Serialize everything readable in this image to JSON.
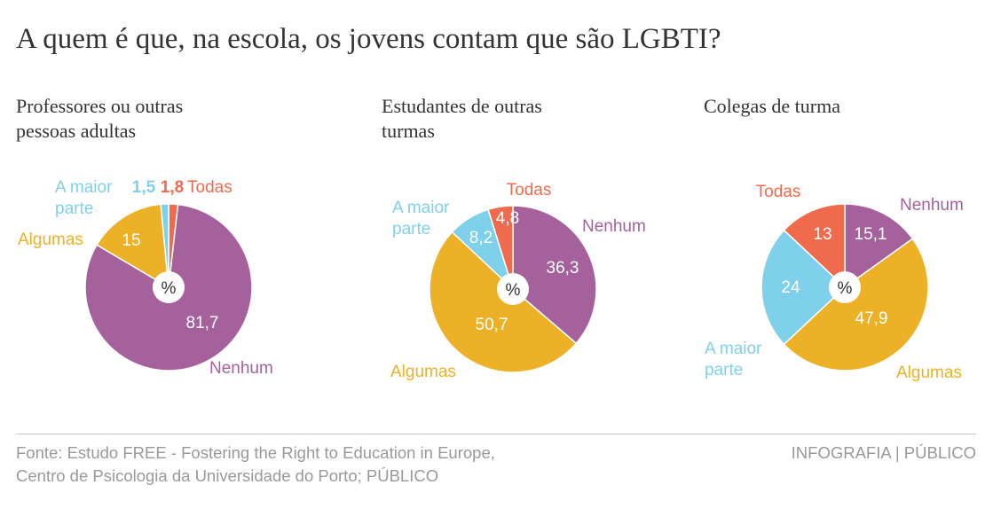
{
  "title": "A quem é que, na escola, os jovens contam que são LGBTI?",
  "center_label": "%",
  "colors": {
    "nenhum": "#a4619c",
    "algumas": "#ecb126",
    "maior_parte": "#7fd0ea",
    "todas": "#f06b4e"
  },
  "chart_data": [
    {
      "type": "pie",
      "title": "Professores ou outras pessoas adultas",
      "title_lines": [
        "Professores ou outras",
        "pessoas adultas"
      ],
      "slices": [
        {
          "name": "Nenhum",
          "value": 81.7,
          "value_label": "81,7",
          "name_lines": [
            "Nenhum"
          ],
          "color_key": "nenhum"
        },
        {
          "name": "Algumas",
          "value": 15,
          "value_label": "15",
          "name_lines": [
            "Algumas"
          ],
          "color_key": "algumas"
        },
        {
          "name": "A maior parte",
          "value": 1.5,
          "value_label": "1,5",
          "name_lines": [
            "A maior",
            "parte"
          ],
          "color_key": "maior_parte"
        },
        {
          "name": "Todas",
          "value": 1.8,
          "value_label": "1,8",
          "name_lines": [
            "Todas"
          ],
          "color_key": "todas"
        }
      ]
    },
    {
      "type": "pie",
      "title": "Estudantes de outras turmas",
      "title_lines": [
        "Estudantes de outras",
        "turmas"
      ],
      "slices": [
        {
          "name": "Nenhum",
          "value": 36.3,
          "value_label": "36,3",
          "name_lines": [
            "Nenhum"
          ],
          "color_key": "nenhum"
        },
        {
          "name": "Algumas",
          "value": 50.7,
          "value_label": "50,7",
          "name_lines": [
            "Algumas"
          ],
          "color_key": "algumas"
        },
        {
          "name": "A maior parte",
          "value": 8.2,
          "value_label": "8,2",
          "name_lines": [
            "A maior",
            "parte"
          ],
          "color_key": "maior_parte"
        },
        {
          "name": "Todas",
          "value": 4.8,
          "value_label": "4,8",
          "name_lines": [
            "Todas"
          ],
          "color_key": "todas"
        }
      ]
    },
    {
      "type": "pie",
      "title": "Colegas de turma",
      "title_lines": [
        "Colegas de turma"
      ],
      "slices": [
        {
          "name": "Nenhum",
          "value": 15.1,
          "value_label": "15,1",
          "name_lines": [
            "Nenhum"
          ],
          "color_key": "nenhum"
        },
        {
          "name": "Algumas",
          "value": 47.9,
          "value_label": "47,9",
          "name_lines": [
            "Algumas"
          ],
          "color_key": "algumas"
        },
        {
          "name": "A maior parte",
          "value": 24,
          "value_label": "24",
          "name_lines": [
            "A maior",
            "parte"
          ],
          "color_key": "maior_parte"
        },
        {
          "name": "Todas",
          "value": 13,
          "value_label": "13",
          "name_lines": [
            "Todas"
          ],
          "color_key": "todas"
        }
      ]
    }
  ],
  "footer": {
    "source_lines": [
      "Fonte: Estudo FREE - Fostering the Right to Education in Europe,",
      "Centro de Psicologia da Universidade do Porto; PÚBLICO"
    ],
    "credit": "INFOGRAFIA | PÚBLICO"
  }
}
